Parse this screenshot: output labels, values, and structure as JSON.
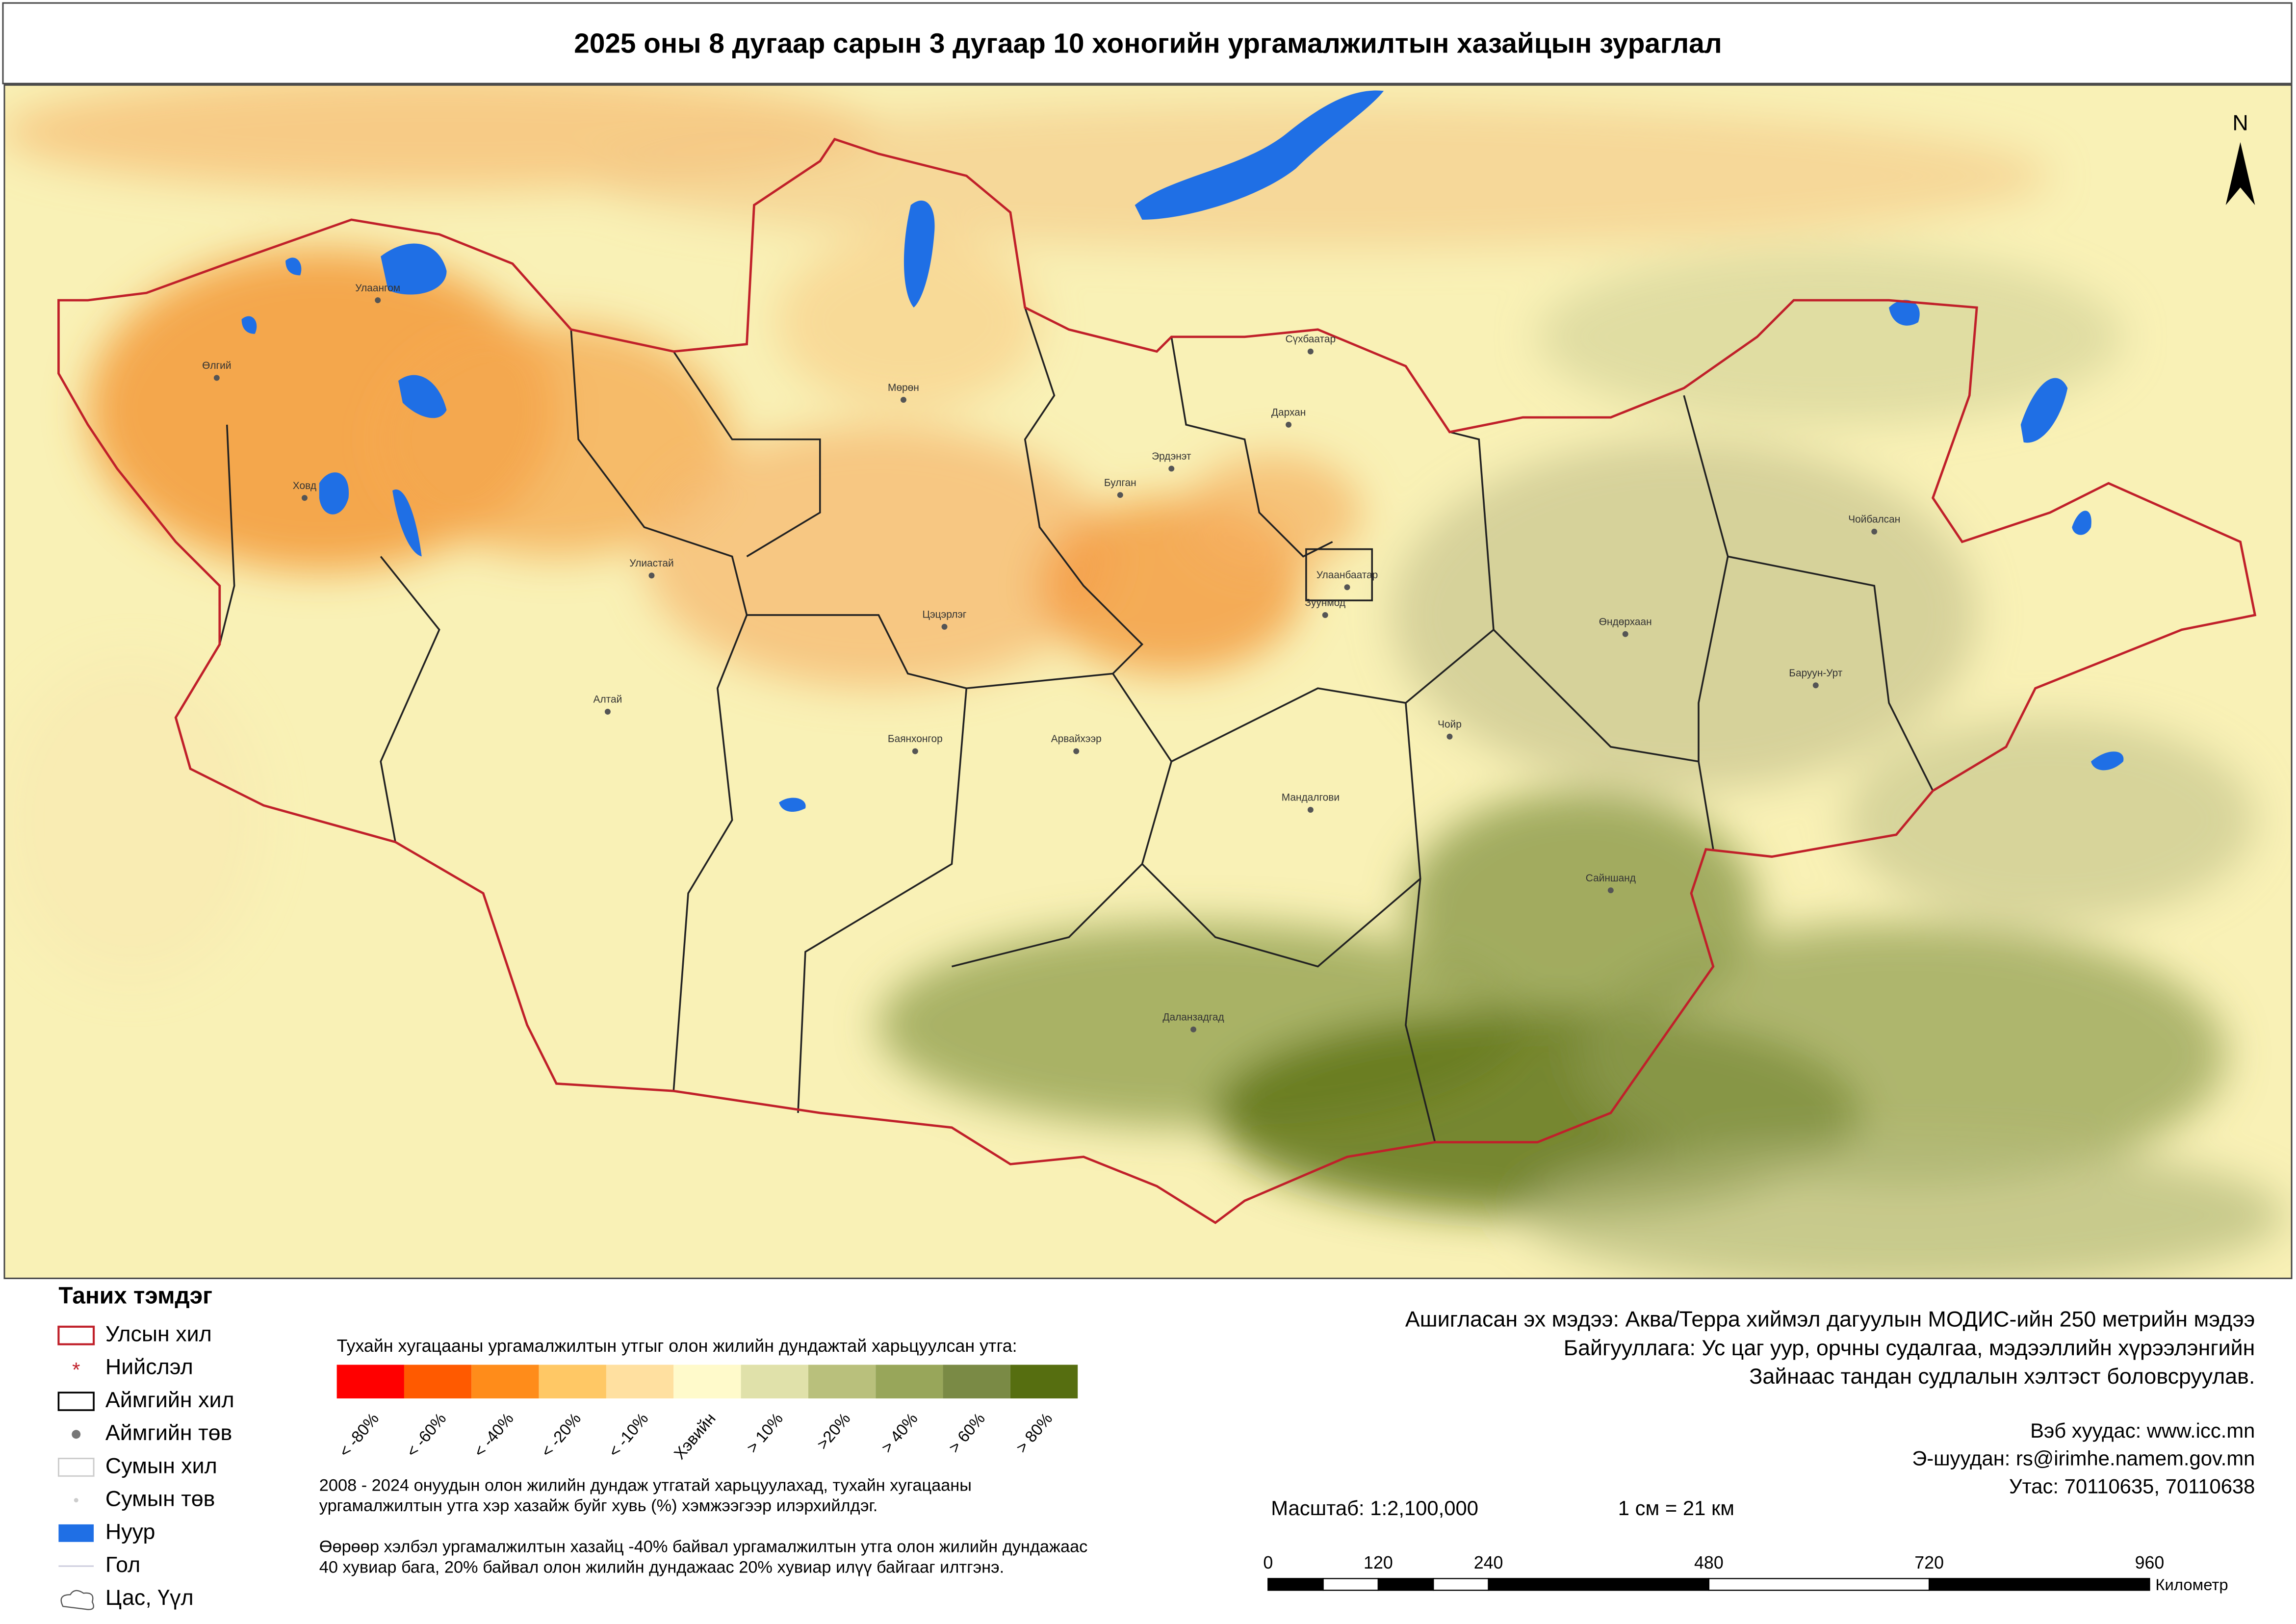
{
  "header": {
    "title": "2025 оны 8 дугаар сарын 3 дугаар 10 хоногийн ургамалжилтын хазайцын зураглал"
  },
  "map": {
    "north": "N",
    "places": [
      "Улаангом",
      "Өлгий",
      "Ховд",
      "Улиастай",
      "Алтай",
      "Мөрөн",
      "Булган",
      "Эрдэнэт",
      "Дархан",
      "Сүхбаатар",
      "Улаанбаатар",
      "Зуунмод",
      "Цэцэрлэг",
      "Баянхонгор",
      "Арвайхээр",
      "Мандалгови",
      "Чойр",
      "Сайншанд",
      "Даланзадгад",
      "Өндөрхаан",
      "Чойбалсан",
      "Баруун-Урт"
    ]
  },
  "legend": {
    "title": "Таних тэмдэг",
    "items": [
      "Улсын хил",
      "Нийслэл",
      "Аймгийн хил",
      "Аймгийн төв",
      "Сумын хил",
      "Сумын төв",
      "Нуур",
      "Гол",
      "Цас, Үүл"
    ]
  },
  "color_scale": {
    "title": "Тухайн хугацааны ургамалжилтын утгыг олон жилийн дундажтай харьцуулсан утга:",
    "classes": [
      {
        "label": "< -80%",
        "color": "#ff0000"
      },
      {
        "label": "< -60%",
        "color": "#ff5a00"
      },
      {
        "label": "< -40%",
        "color": "#ff8c1a"
      },
      {
        "label": "< -20%",
        "color": "#ffc865"
      },
      {
        "label": "< -10%",
        "color": "#ffe0a0"
      },
      {
        "label": "Хэвийн",
        "color": "#fffacb"
      },
      {
        "label": "> 10%",
        "color": "#e0e1aa"
      },
      {
        "label": ">20%",
        "color": "#b9c07c"
      },
      {
        "label": "> 40%",
        "color": "#98a65a"
      },
      {
        "label": "> 60%",
        "color": "#7a8a45"
      },
      {
        "label": "> 80%",
        "color": "#566e10"
      }
    ]
  },
  "notes": [
    [
      "2008 - 2024 онуудын олон жилийн дундаж утгатай харьцуулахад, тухайн хугацааны",
      "ургамалжилтын утга хэр хазайж буйг хувь (%) хэмжээгээр илэрхийлдэг."
    ],
    [
      "Өөрөөр хэлбэл ургамалжилтын хазайц -40% байвал ургамалжилтын утга олон жилийн дундажаас",
      "40 хувиар бага, 20% байвал олон жилийн дундажаас 20% хувиар илүү байгааг илтгэнэ."
    ]
  ],
  "source": [
    "Ашигласан эх мэдээ: Аква/Терра хиймэл дагуулын МОДИС-ийн 250 метрийн мэдээ",
    "Байгууллага: Ус цаг уур, орчны судалгаа, мэдээллийн хүрээлэнгийн",
    "Зайнаас тандан судлалын хэлтэст боловсруулав."
  ],
  "contacts": [
    "Вэб хуудас: www.icc.mn",
    "Э-шуудан: rs@irimhe.namem.gov.mn",
    "Утас: 70110635, 70110638"
  ],
  "scale": {
    "ratio": "Масштаб: 1:2,100,000",
    "equivalence": "1 см = 21 км",
    "ticks": [
      0,
      120,
      240,
      480,
      720,
      960
    ],
    "unit": "Километр"
  }
}
